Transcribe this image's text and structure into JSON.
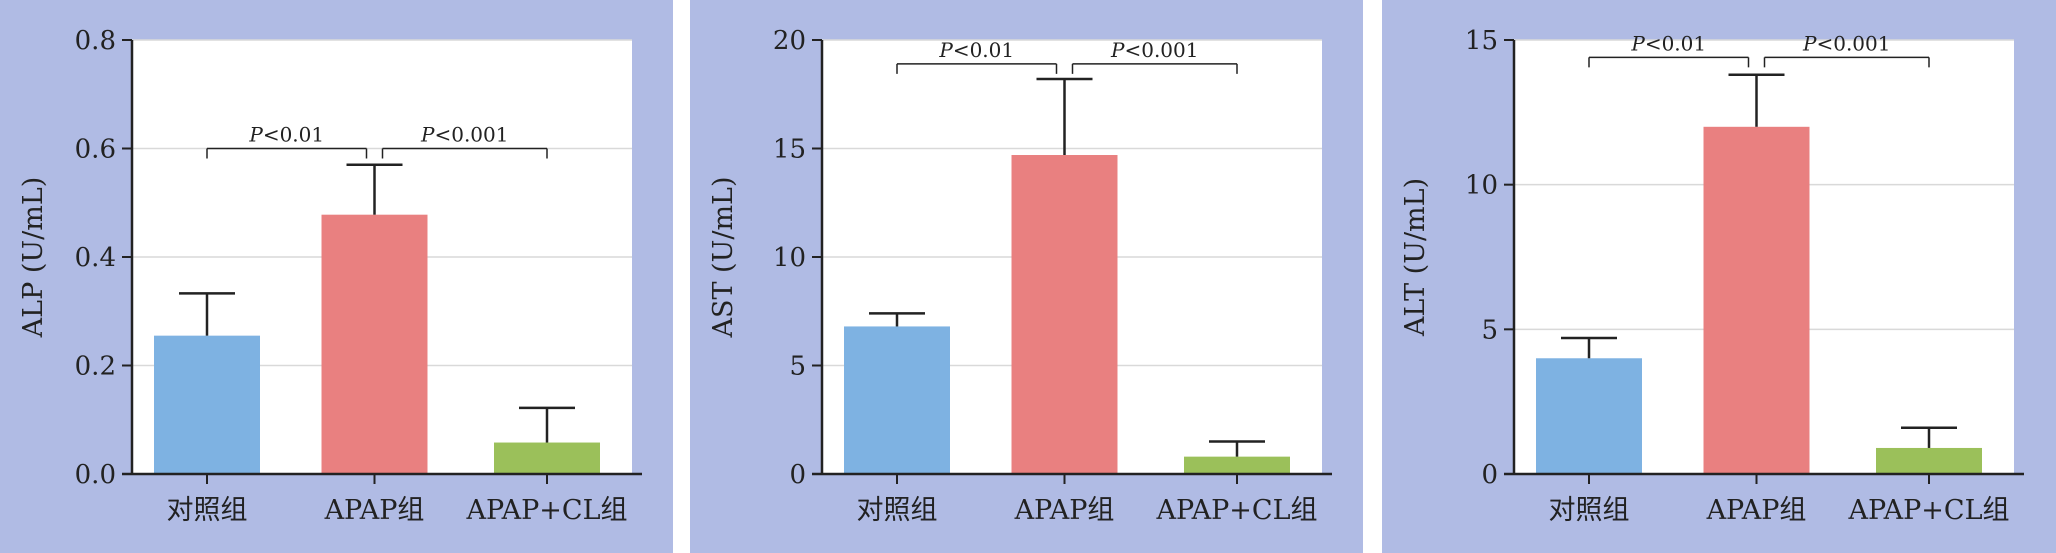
{
  "colors": {
    "panel_bg": "#b0bbe4",
    "plot_bg": "#ffffff",
    "grid": "#d9d9d9",
    "axis": "#222222",
    "control": "#7eb2e2",
    "apap": "#e98080",
    "apap_cl": "#9bc05a"
  },
  "chart_data": [
    {
      "type": "bar",
      "categories": [
        "对照组",
        "APAP组",
        "APAP+CL组"
      ],
      "values": [
        0.255,
        0.478,
        0.058
      ],
      "error_upper": [
        0.333,
        0.57,
        0.122
      ],
      "ylabel": "ALP (U/mL)",
      "ylim": [
        0,
        0.8
      ],
      "yticks": [
        "0.0",
        "0.2",
        "0.4",
        "0.6",
        "0.8"
      ],
      "grid": true,
      "significance": [
        {
          "from": 0,
          "to": 1,
          "label": "P<0.01",
          "y": 0.6
        },
        {
          "from": 1,
          "to": 2,
          "label": "P<0.001",
          "y": 0.6
        }
      ]
    },
    {
      "type": "bar",
      "categories": [
        "对照组",
        "APAP组",
        "APAP+CL组"
      ],
      "values": [
        6.8,
        14.7,
        0.8
      ],
      "error_upper": [
        7.4,
        18.2,
        1.5
      ],
      "ylabel": "AST (U/mL)",
      "ylim": [
        0,
        20
      ],
      "yticks": [
        "0",
        "5",
        "10",
        "15",
        "20"
      ],
      "grid": true,
      "significance": [
        {
          "from": 0,
          "to": 1,
          "label": "P<0.01",
          "y": 18.9
        },
        {
          "from": 1,
          "to": 2,
          "label": "P<0.001",
          "y": 18.9
        }
      ]
    },
    {
      "type": "bar",
      "categories": [
        "对照组",
        "APAP组",
        "APAP+CL组"
      ],
      "values": [
        4.0,
        12.0,
        0.9
      ],
      "error_upper": [
        4.7,
        13.8,
        1.6
      ],
      "ylabel": "ALT (U/mL)",
      "ylim": [
        0,
        15
      ],
      "yticks": [
        "0",
        "5",
        "10",
        "15"
      ],
      "grid": true,
      "significance": [
        {
          "from": 0,
          "to": 1,
          "label": "P<0.01",
          "y": 14.4
        },
        {
          "from": 1,
          "to": 2,
          "label": "P<0.001",
          "y": 14.4
        }
      ]
    }
  ]
}
